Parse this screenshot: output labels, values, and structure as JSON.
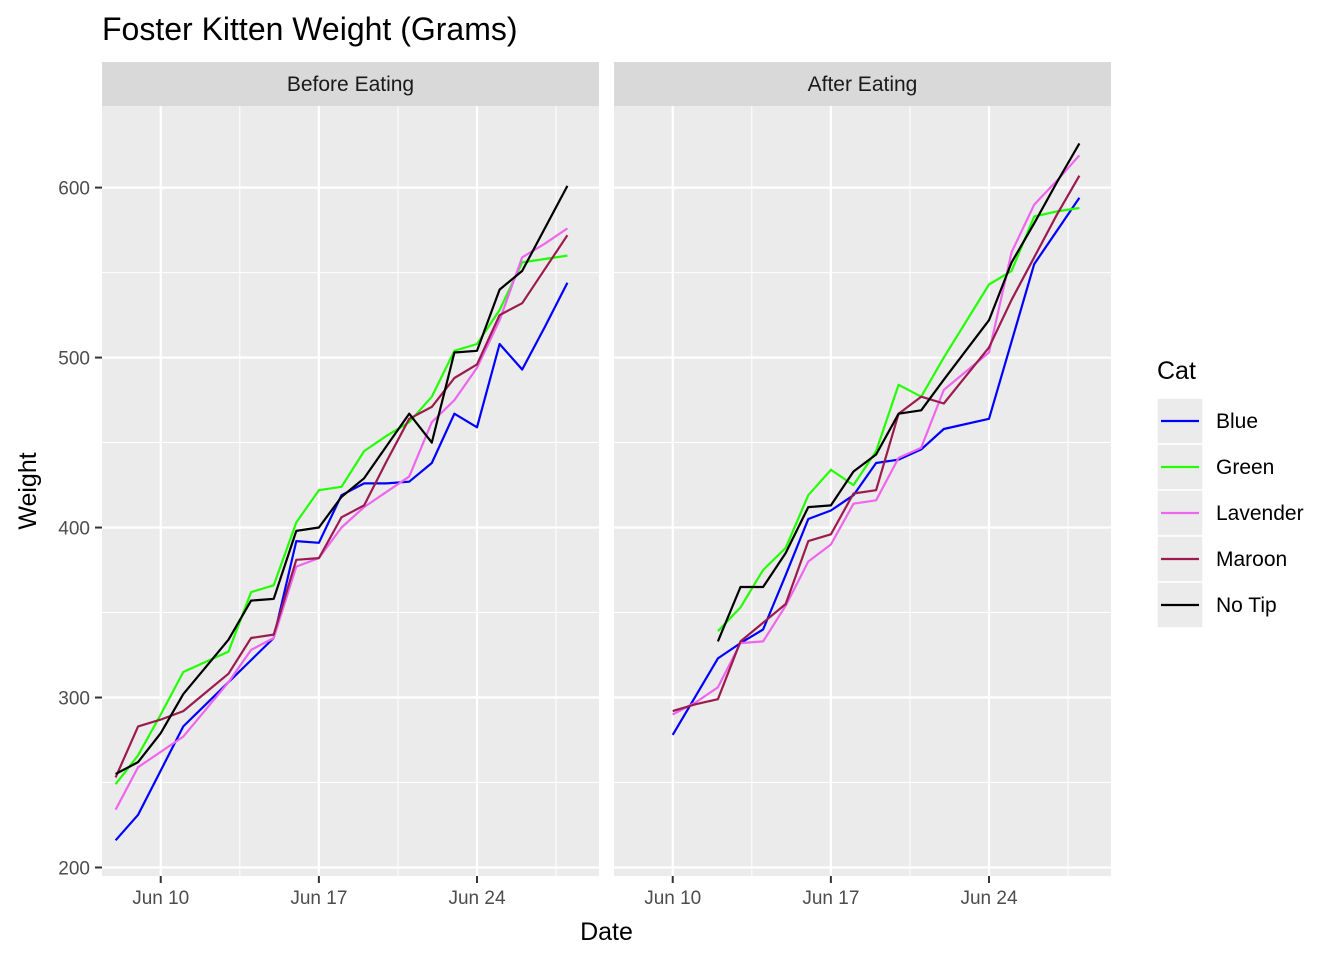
{
  "chart_data": {
    "type": "line",
    "title": "Foster Kitten Weight (Grams)",
    "xlabel": "Date",
    "ylabel": "Weight",
    "ylim": [
      195,
      648
    ],
    "xlim_day_of_june": [
      7.4,
      29.4
    ],
    "x_ticks": [
      {
        "label": "Jun 10",
        "day": 10
      },
      {
        "label": "Jun 17",
        "day": 17
      },
      {
        "label": "Jun 24",
        "day": 24
      }
    ],
    "y_ticks": [
      {
        "label": "200",
        "value": 200
      },
      {
        "label": "300",
        "value": 300
      },
      {
        "label": "400",
        "value": 400
      },
      {
        "label": "500",
        "value": 500
      },
      {
        "label": "600",
        "value": 600
      }
    ],
    "legend": {
      "title": "Cat",
      "position": "right",
      "entries": [
        {
          "name": "Blue",
          "color": "#0000ff"
        },
        {
          "name": "Green",
          "color": "#22ff00"
        },
        {
          "name": "Lavender",
          "color": "#ee66ee"
        },
        {
          "name": "Maroon",
          "color": "#9b1b4f"
        },
        {
          "name": "No Tip",
          "color": "#000000"
        }
      ]
    },
    "panels": [
      {
        "label": "Before Eating",
        "series": [
          {
            "name": "Blue",
            "x": [
              8,
              9,
              10,
              11,
              12,
              13,
              14,
              15,
              16,
              17,
              18,
              19,
              20,
              21,
              22,
              23,
              24,
              25,
              26,
              27,
              28
            ],
            "y": [
              216,
              231,
              257,
              283,
              296,
              309,
              322,
              335,
              392,
              391,
              419,
              426,
              426,
              427,
              438,
              467,
              459,
              508,
              493,
              518,
              544
            ]
          },
          {
            "name": "Green",
            "x": [
              8,
              9,
              10,
              11,
              12,
              13,
              14,
              15,
              16,
              17,
              18,
              19,
              20,
              21,
              22,
              23,
              24,
              25,
              26,
              27,
              28
            ],
            "y": [
              249,
              266,
              290,
              315,
              321,
              327,
              362,
              366,
              403,
              422,
              424,
              445,
              454,
              462,
              477,
              504,
              508,
              528,
              556,
              558,
              560
            ]
          },
          {
            "name": "Lavender",
            "x": [
              8,
              9,
              10,
              11,
              12,
              13,
              14,
              15,
              16,
              17,
              18,
              19,
              20,
              21,
              22,
              23,
              24,
              25,
              26,
              27,
              28
            ],
            "y": [
              234,
              259,
              268,
              277,
              293,
              309,
              328,
              335,
              377,
              382,
              400,
              412,
              421,
              430,
              462,
              475,
              494,
              522,
              559,
              567,
              576
            ]
          },
          {
            "name": "Maroon",
            "x": [
              8,
              9,
              10,
              11,
              12,
              13,
              14,
              15,
              16,
              17,
              18,
              19,
              20,
              21,
              22,
              23,
              24,
              25,
              26,
              27,
              28
            ],
            "y": [
              253,
              283,
              287,
              292,
              303,
              314,
              335,
              337,
              381,
              382,
              406,
              413,
              439,
              464,
              471,
              488,
              496,
              525,
              532,
              552,
              572
            ]
          },
          {
            "name": "No Tip",
            "x": [
              8,
              9,
              10,
              11,
              12,
              13,
              14,
              15,
              16,
              17,
              18,
              19,
              20,
              21,
              22,
              23,
              24,
              25,
              26,
              27,
              28
            ],
            "y": [
              255,
              262,
              279,
              302,
              318,
              334,
              357,
              358,
              398,
              400,
              418,
              429,
              448,
              467,
              450,
              503,
              504,
              540,
              551,
              576,
              601
            ]
          }
        ]
      },
      {
        "label": "After Eating",
        "series": [
          {
            "name": "Blue",
            "x": [
              10,
              12,
              13,
              14,
              15,
              16,
              17,
              18,
              19,
              20,
              21,
              22,
              24,
              26,
              28
            ],
            "y": [
              278,
              323,
              332,
              340,
              372,
              405,
              410,
              419,
              438,
              440,
              446,
              458,
              464,
              555,
              594
            ]
          },
          {
            "name": "Green",
            "x": [
              12,
              13,
              14,
              15,
              16,
              17,
              18,
              19,
              20,
              21,
              22,
              24,
              25,
              26,
              27,
              28
            ],
            "y": [
              339,
              353,
              375,
              388,
              419,
              434,
              425,
              445,
              484,
              477,
              500,
              543,
              551,
              583,
              586,
              588
            ]
          },
          {
            "name": "Lavender",
            "x": [
              10,
              11,
              12,
              13,
              14,
              15,
              16,
              17,
              18,
              19,
              20,
              21,
              22,
              24,
              25,
              26,
              27,
              28
            ],
            "y": [
              290,
              297,
              306,
              332,
              333,
              354,
              380,
              390,
              414,
              416,
              441,
              447,
              481,
              503,
              562,
              590,
              604,
              619
            ]
          },
          {
            "name": "Maroon",
            "x": [
              10,
              11,
              12,
              13,
              14,
              15,
              16,
              17,
              18,
              19,
              20,
              21,
              22,
              24,
              25,
              26,
              27,
              28
            ],
            "y": [
              292,
              296,
              299,
              333,
              344,
              355,
              392,
              396,
              420,
              422,
              467,
              477,
              473,
              506,
              534,
              559,
              584,
              607
            ]
          },
          {
            "name": "No Tip",
            "x": [
              12,
              13,
              14,
              15,
              16,
              17,
              18,
              19,
              20,
              21,
              22,
              24,
              25,
              26,
              27,
              28
            ],
            "y": [
              333,
              365,
              365,
              385,
              412,
              413,
              433,
              443,
              467,
              469,
              487,
              522,
              556,
              579,
              603,
              626
            ]
          }
        ]
      }
    ]
  }
}
